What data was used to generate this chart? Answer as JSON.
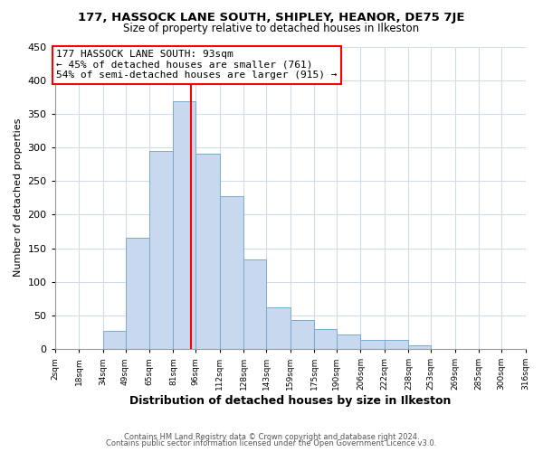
{
  "title": "177, HASSOCK LANE SOUTH, SHIPLEY, HEANOR, DE75 7JE",
  "subtitle": "Size of property relative to detached houses in Ilkeston",
  "xlabel": "Distribution of detached houses by size in Ilkeston",
  "ylabel": "Number of detached properties",
  "bar_color": "#c8d8ee",
  "bar_edge_color": "#7aaad0",
  "vline_x": 93,
  "vline_color": "red",
  "annotation_title": "177 HASSOCK LANE SOUTH: 93sqm",
  "annotation_line1": "← 45% of detached houses are smaller (761)",
  "annotation_line2": "54% of semi-detached houses are larger (915) →",
  "annotation_box_color": "white",
  "annotation_box_edge": "red",
  "bins": [
    2,
    18,
    34,
    49,
    65,
    81,
    96,
    112,
    128,
    143,
    159,
    175,
    190,
    206,
    222,
    238,
    253,
    269,
    285,
    300,
    316
  ],
  "counts": [
    0,
    0,
    27,
    165,
    295,
    368,
    290,
    228,
    133,
    62,
    43,
    30,
    22,
    13,
    13,
    5,
    0,
    0,
    0,
    0
  ],
  "ylim": [
    0,
    450
  ],
  "yticks": [
    0,
    50,
    100,
    150,
    200,
    250,
    300,
    350,
    400,
    450
  ],
  "footer1": "Contains HM Land Registry data © Crown copyright and database right 2024.",
  "footer2": "Contains public sector information licensed under the Open Government Licence v3.0.",
  "background_color": "#ffffff",
  "grid_color": "#d0dce8"
}
